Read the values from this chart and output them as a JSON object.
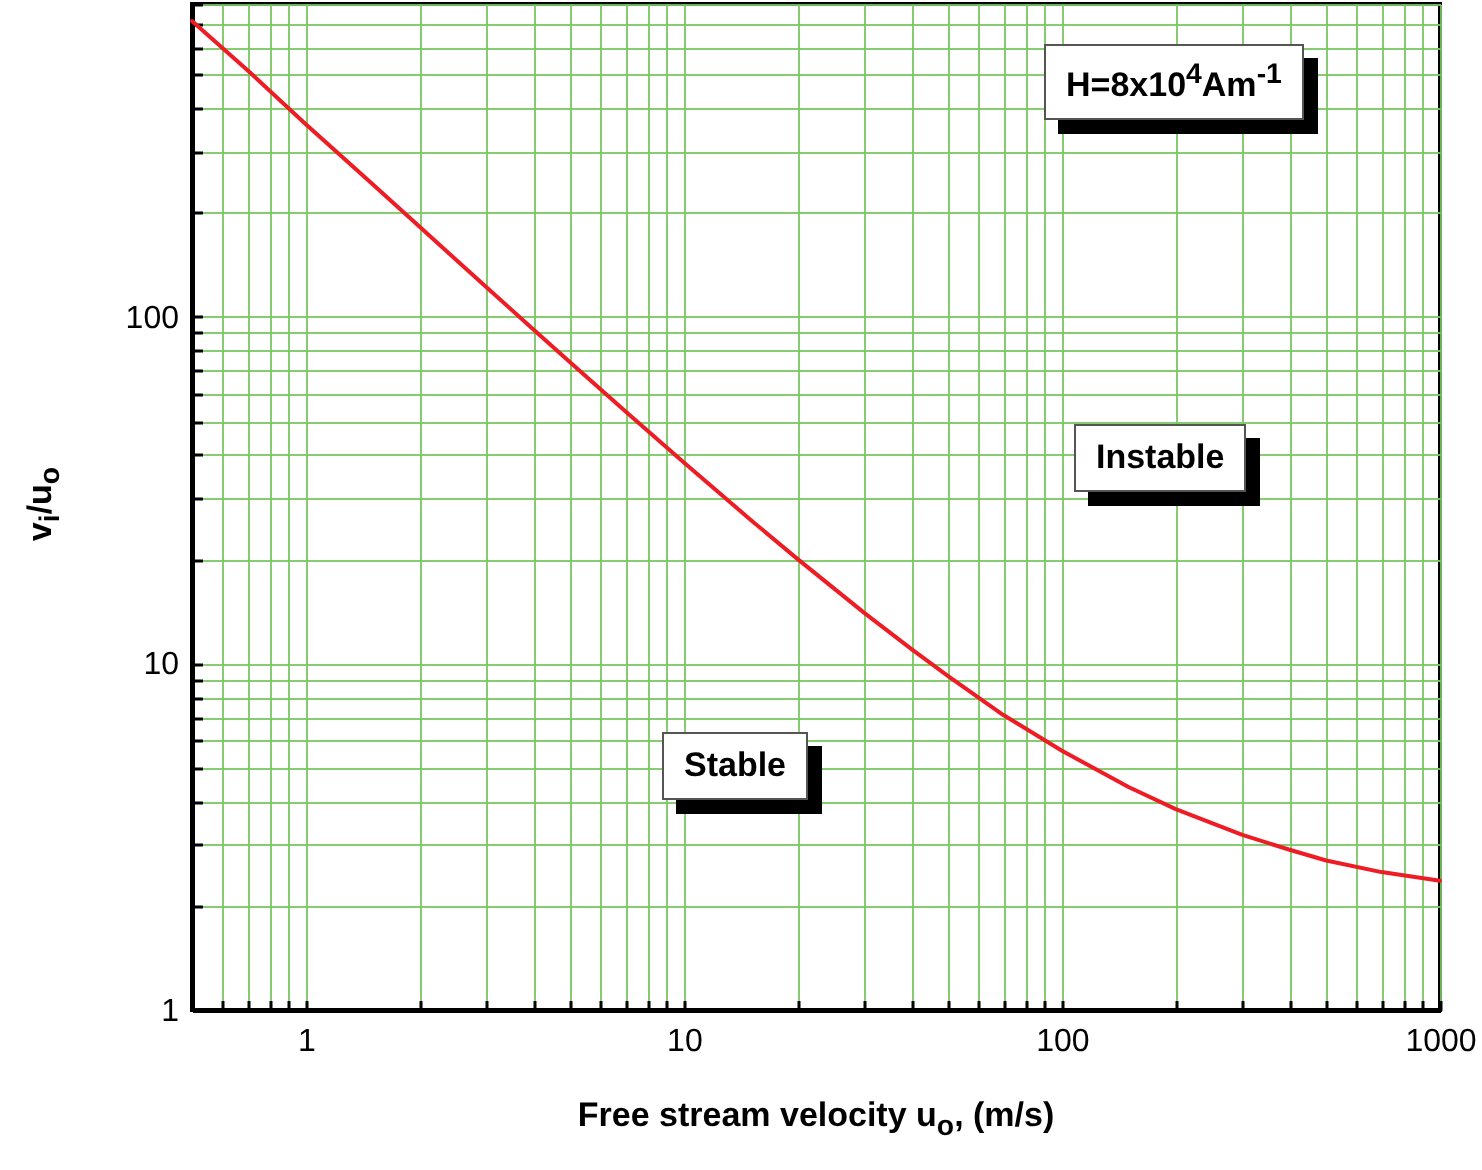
{
  "chart_data": {
    "type": "line",
    "xlabel": "Free stream velocity u$_{o}$, (m/s)",
    "ylabel": "v$_{i}$/u$_{o}$",
    "log": "xy",
    "grid": true,
    "xlim": [
      0.5,
      1000
    ],
    "xticks": [
      {
        "value": 0.5,
        "label": null
      },
      {
        "value": 0.6,
        "label": null
      },
      {
        "value": 0.7,
        "label": null
      },
      {
        "value": 0.8,
        "label": null
      },
      {
        "value": 0.9,
        "label": null
      },
      1,
      {
        "value": 2,
        "label": null
      },
      {
        "value": 3,
        "label": null
      },
      {
        "value": 4,
        "label": null
      },
      {
        "value": 5,
        "label": null
      },
      {
        "value": 6,
        "label": null
      },
      {
        "value": 7,
        "label": null
      },
      {
        "value": 8,
        "label": null
      },
      {
        "value": 9,
        "label": null
      },
      10,
      {
        "value": 20,
        "label": null
      },
      {
        "value": 30,
        "label": null
      },
      {
        "value": 40,
        "label": null
      },
      {
        "value": 50,
        "label": null
      },
      {
        "value": 60,
        "label": null
      },
      {
        "value": 70,
        "label": null
      },
      {
        "value": 80,
        "label": null
      },
      {
        "value": 90,
        "label": null
      },
      100,
      {
        "value": 200,
        "label": null
      },
      {
        "value": 300,
        "label": null
      },
      {
        "value": 400,
        "label": null
      },
      {
        "value": 500,
        "label": null
      },
      {
        "value": 600,
        "label": null
      },
      {
        "value": 700,
        "label": null
      },
      {
        "value": 800,
        "label": null
      },
      {
        "value": 900,
        "label": null
      },
      1000
    ],
    "ylim": [
      1,
      800
    ],
    "yticks": [
      1,
      {
        "value": 2,
        "label": null
      },
      {
        "value": 3,
        "label": null
      },
      {
        "value": 4,
        "label": null
      },
      {
        "value": 5,
        "label": null
      },
      {
        "value": 6,
        "label": null
      },
      {
        "value": 7,
        "label": null
      },
      {
        "value": 8,
        "label": null
      },
      {
        "value": 9,
        "label": null
      },
      10,
      {
        "value": 20,
        "label": null
      },
      {
        "value": 30,
        "label": null
      },
      {
        "value": 40,
        "label": null
      },
      {
        "value": 50,
        "label": null
      },
      {
        "value": 60,
        "label": null
      },
      {
        "value": 70,
        "label": null
      },
      {
        "value": 80,
        "label": null
      },
      {
        "value": 90,
        "label": null
      },
      100,
      {
        "value": 200,
        "label": null
      },
      {
        "value": 300,
        "label": null
      },
      {
        "value": 400,
        "label": null
      },
      {
        "value": 500,
        "label": null
      },
      {
        "value": 600,
        "label": null
      },
      {
        "value": 700,
        "label": null
      },
      {
        "value": 800,
        "label": null
      }
    ],
    "x": [
      0.5,
      0.7,
      1,
      1.5,
      2,
      3,
      4,
      5,
      7,
      10,
      15,
      20,
      30,
      40,
      50,
      70,
      100,
      150,
      200,
      300,
      400,
      500,
      700,
      1000
    ],
    "series": [
      {
        "color": "#ee1c24",
        "values": [
          714,
          516,
          360,
          242,
          182,
          122,
          92,
          74,
          53.4,
          38,
          26,
          20,
          14,
          11,
          9.2,
          7.1,
          5.6,
          4.4,
          3.8,
          3.2,
          2.9,
          2.7,
          2.5,
          2.36
        ]
      }
    ],
    "annotations": [
      "H=8x10$^{4}$Am$^{-1}$",
      "Instable",
      "Stable"
    ]
  }
}
